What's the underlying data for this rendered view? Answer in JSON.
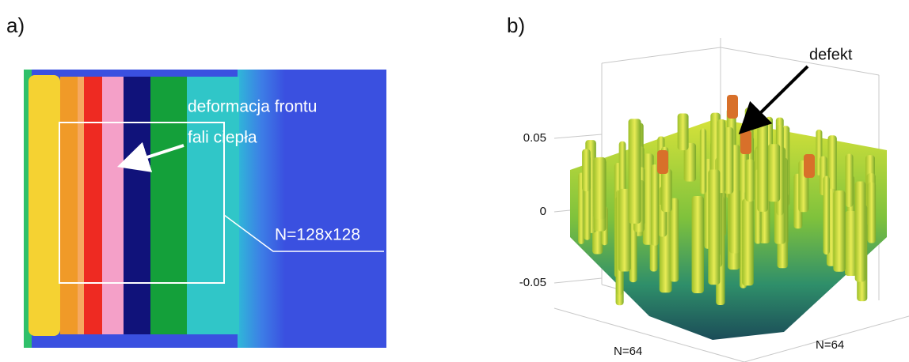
{
  "panel_a": {
    "label": "a)",
    "annotation": [
      "deformacja frontu",
      "fali ciepła"
    ],
    "roi_label": "N=128x128"
  },
  "panel_b": {
    "label": "b)",
    "annotation": "defekt",
    "z_tick_labels": [
      "0.05",
      "0",
      "-0.05"
    ],
    "axis_labels": [
      "N=64",
      "N=64"
    ]
  }
}
